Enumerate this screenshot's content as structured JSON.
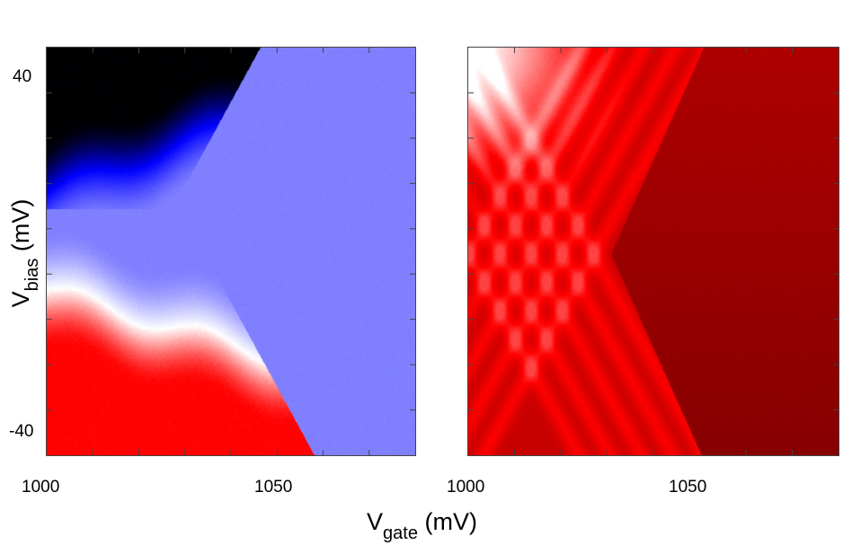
{
  "chart_data": [
    {
      "type": "heatmap",
      "panel": "left",
      "colormap": [
        "#000000",
        "#0000ff",
        "#8080ff",
        "#ffffff",
        "#ff0000"
      ],
      "x": {
        "label_main": "V",
        "label_sub": "gate",
        "label_unit": "(mV)",
        "range": [
          1000,
          1083
        ],
        "ticks": [
          1000,
          1050
        ]
      },
      "y": {
        "label_main": "V",
        "label_sub": "bias",
        "label_unit": "(mV)",
        "range": [
          -45,
          46
        ],
        "ticks": [
          40,
          -40
        ]
      },
      "features": {
        "plateau_color": "#8080ff",
        "dark_region_top_left": "#000000",
        "red_region_bottom_left": "#ff0000"
      }
    },
    {
      "type": "heatmap",
      "panel": "right",
      "colormap": [
        "#ffffff",
        "#ff0000",
        "#800000"
      ],
      "x": {
        "range": [
          1000,
          1083
        ],
        "ticks": [
          1000,
          1050
        ]
      },
      "y": {
        "range": [
          -45,
          46
        ]
      },
      "features": {
        "background_color": "#800000",
        "highlight_color": "#ff2020",
        "faded_top_left": "#ffffff"
      }
    }
  ]
}
